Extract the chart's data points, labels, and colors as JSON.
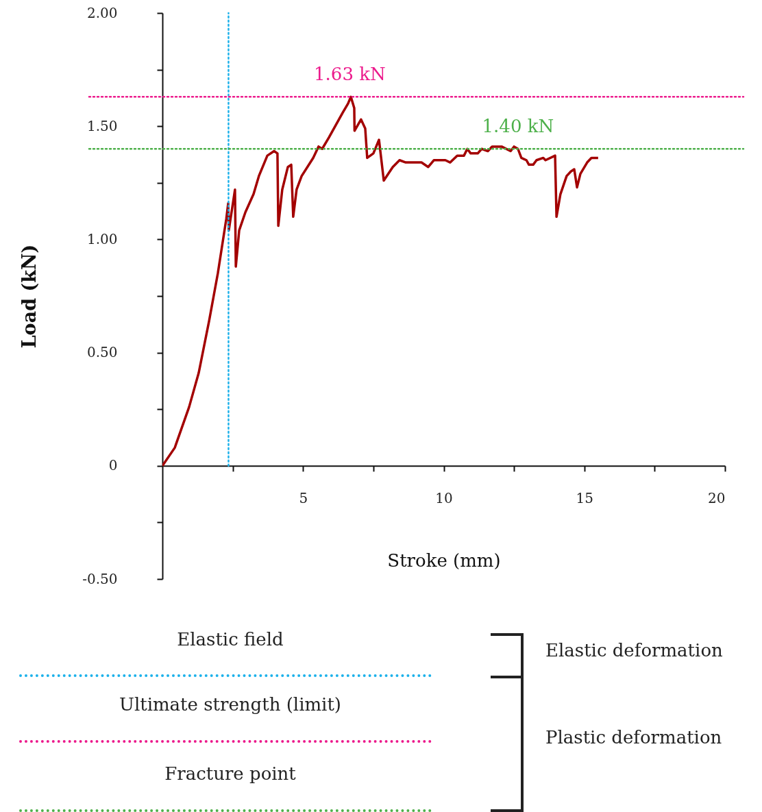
{
  "chart_data": {
    "type": "line",
    "xlabel": "Stroke (mm)",
    "ylabel": "Load (kN)",
    "x": [
      0,
      0.44,
      0.95,
      1.29,
      1.66,
      1.97,
      2.27,
      2.34,
      2.36,
      2.58,
      2.61,
      2.73,
      2.95,
      3.24,
      3.43,
      3.73,
      3.97,
      4.09,
      4.12,
      4.26,
      4.46,
      4.58,
      4.65,
      4.77,
      4.95,
      5.36,
      5.55,
      5.68,
      5.92,
      6.41,
      6.6,
      6.7,
      6.82,
      6.83,
      7.06,
      7.21,
      7.28,
      7.5,
      7.7,
      7.87,
      8.19,
      8.43,
      8.65,
      9.21,
      9.45,
      9.65,
      10.06,
      10.23,
      10.48,
      10.72,
      10.84,
      10.96,
      11.21,
      11.35,
      11.57,
      11.72,
      12.06,
      12.38,
      12.5,
      12.64,
      12.76,
      12.94,
      13.03,
      13.18,
      13.3,
      13.54,
      13.62,
      13.96,
      14.01,
      14.15,
      14.37,
      14.52,
      14.64,
      14.74,
      14.86,
      15.1,
      15.25,
      15.4,
      15.49
    ],
    "series": [
      {
        "color": "#a30000",
        "values": [
          0,
          0.08,
          0.26,
          0.41,
          0.64,
          0.85,
          1.09,
          1.16,
          1.04,
          1.22,
          0.88,
          1.04,
          1.12,
          1.2,
          1.28,
          1.37,
          1.39,
          1.38,
          1.06,
          1.22,
          1.32,
          1.33,
          1.1,
          1.22,
          1.28,
          1.36,
          1.41,
          1.4,
          1.45,
          1.56,
          1.6,
          1.63,
          1.58,
          1.48,
          1.53,
          1.49,
          1.36,
          1.38,
          1.44,
          1.26,
          1.32,
          1.35,
          1.34,
          1.34,
          1.32,
          1.35,
          1.35,
          1.34,
          1.37,
          1.37,
          1.4,
          1.38,
          1.38,
          1.4,
          1.39,
          1.41,
          1.41,
          1.39,
          1.41,
          1.4,
          1.36,
          1.35,
          1.33,
          1.33,
          1.35,
          1.36,
          1.35,
          1.37,
          1.1,
          1.2,
          1.28,
          1.3,
          1.31,
          1.23,
          1.29,
          1.34,
          1.36,
          1.36,
          1.36
        ]
      }
    ],
    "xlim": [
      0,
      20
    ],
    "xticks": [
      {
        "value": 2.5,
        "label": null
      },
      5,
      {
        "value": 7.5,
        "label": null
      },
      10,
      {
        "value": 12.5,
        "label": null
      },
      15,
      {
        "value": 17.5,
        "label": null
      },
      20
    ],
    "ylim": [
      -0.5,
      2
    ],
    "yticks": [
      {
        "value": -0.5,
        "label": "-0.50"
      },
      {
        "value": -0.25,
        "label": null
      },
      0,
      {
        "value": 0.25,
        "label": null
      },
      {
        "value": 0.5,
        "label": "0.50"
      },
      {
        "value": 0.75,
        "label": null
      },
      {
        "value": 1,
        "label": "1.00"
      },
      {
        "value": 1.25,
        "label": null
      },
      {
        "value": 1.5,
        "label": "1.50"
      },
      {
        "value": 1.75,
        "label": null
      },
      {
        "value": 2,
        "label": "2.00"
      }
    ],
    "grid": false,
    "ref_lines": [
      {
        "axis": "x",
        "value": 2.35,
        "color": "#1cb1ea",
        "line_style": "dotted"
      },
      {
        "axis": "y",
        "value": 1.63,
        "label": "1.63 kN",
        "color": "#ec1a8c",
        "line_style": "dotted"
      },
      {
        "axis": "y",
        "value": 1.4,
        "label": "1.40 kN",
        "color": "#4db04a",
        "line_style": "dotted"
      }
    ],
    "annotations": [
      "Elastic field",
      "Ultimate strength (limit)",
      "Fracture point",
      "Elastic deformation",
      "Plastic deformation"
    ]
  }
}
